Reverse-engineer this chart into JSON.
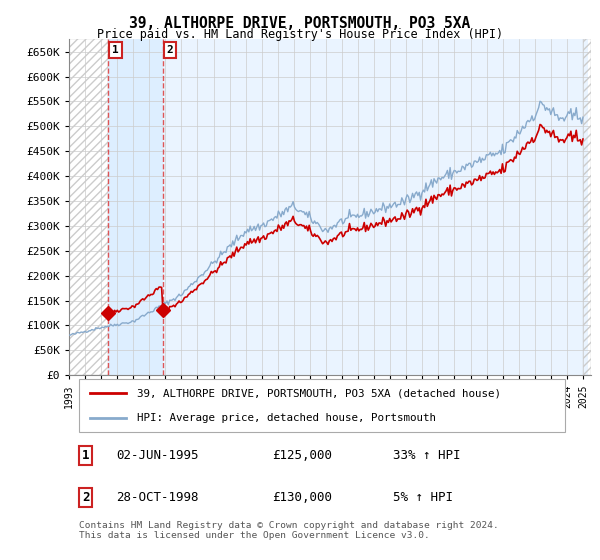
{
  "title": "39, ALTHORPE DRIVE, PORTSMOUTH, PO3 5XA",
  "subtitle": "Price paid vs. HM Land Registry's House Price Index (HPI)",
  "legend_label_red": "39, ALTHORPE DRIVE, PORTSMOUTH, PO3 5XA (detached house)",
  "legend_label_blue": "HPI: Average price, detached house, Portsmouth",
  "transaction1_date": "02-JUN-1995",
  "transaction1_price": "£125,000",
  "transaction1_hpi": "33% ↑ HPI",
  "transaction1_year": 1995.42,
  "transaction1_value": 125000,
  "transaction2_date": "28-OCT-1998",
  "transaction2_price": "£130,000",
  "transaction2_hpi": "5% ↑ HPI",
  "transaction2_year": 1998.83,
  "transaction2_value": 130000,
  "footer": "Contains HM Land Registry data © Crown copyright and database right 2024.\nThis data is licensed under the Open Government Licence v3.0.",
  "yticks": [
    0,
    50000,
    100000,
    150000,
    200000,
    250000,
    300000,
    350000,
    400000,
    450000,
    500000,
    550000,
    600000,
    650000
  ],
  "vline_color": "#dd4444",
  "highlight_box_color": "#ddeeff",
  "red_line_color": "#cc0000",
  "blue_line_color": "#88aacc"
}
